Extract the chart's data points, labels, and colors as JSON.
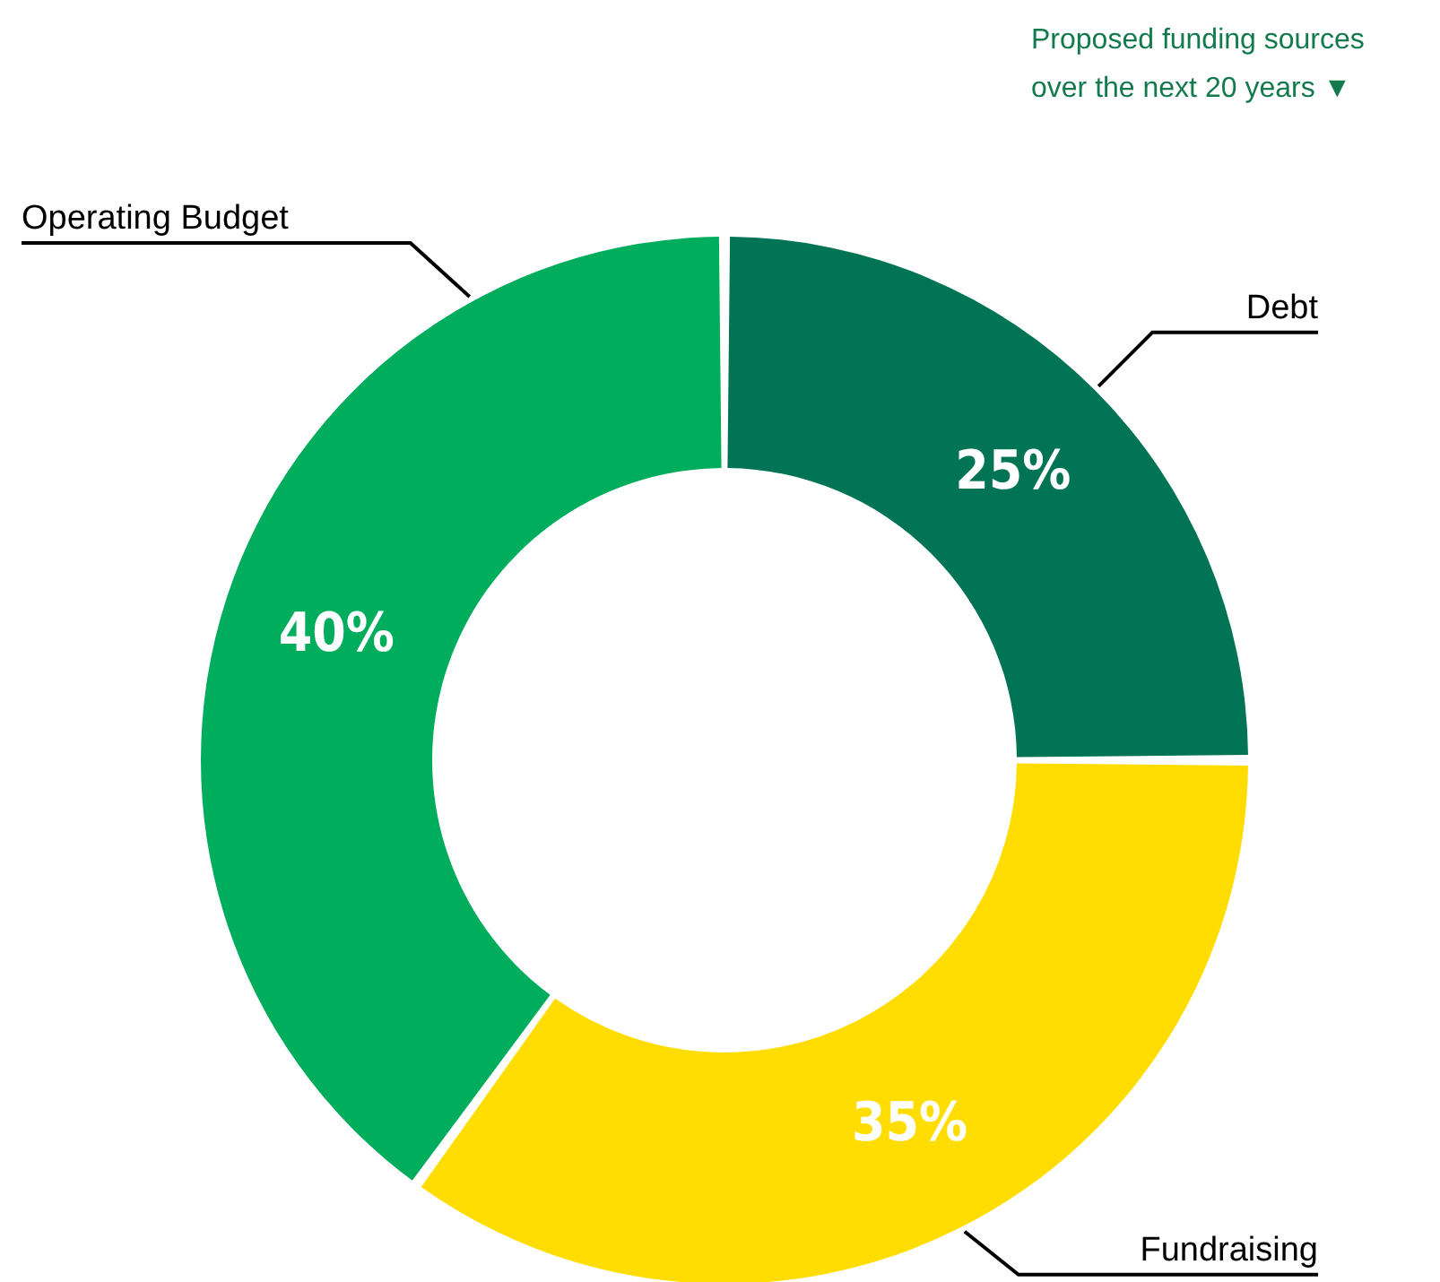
{
  "chart_data": {
    "type": "donut",
    "title": "Proposed funding sources over the next 20 years ▼",
    "categories": [
      "Debt",
      "Fundraising",
      "Operating Budget"
    ],
    "values": [
      25,
      35,
      40
    ],
    "value_labels": [
      "25%",
      "35%",
      "40%"
    ],
    "colors": [
      "#007455",
      "#ffdd00",
      "#00ad5d"
    ]
  }
}
